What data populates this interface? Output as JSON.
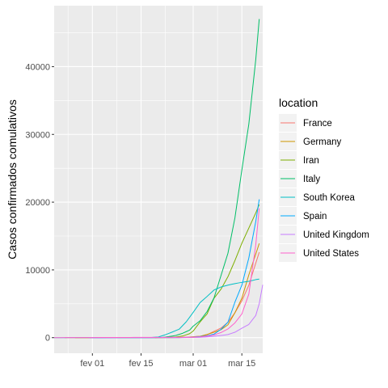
{
  "chart_data": {
    "type": "line",
    "ylabel": "Casos confirmados comulativos",
    "xlabel": "",
    "x_tick_labels": [
      {
        "date": "2020-02-01",
        "label": "fev 01"
      },
      {
        "date": "2020-02-15",
        "label": "fev 15"
      },
      {
        "date": "2020-03-01",
        "label": "mar 01"
      },
      {
        "date": "2020-03-15",
        "label": "mar 15"
      }
    ],
    "y_ticks": [
      0,
      10000,
      20000,
      30000,
      40000
    ],
    "xlim": [
      "2020-01-21",
      "2020-03-21"
    ],
    "ylim": [
      -2300,
      49000
    ],
    "legend_title": "location",
    "legend_position": "right",
    "background": "#ebebeb",
    "grid": true,
    "series": [
      {
        "name": "France",
        "color": "#F8766D",
        "points": [
          [
            "2020-01-24",
            0
          ],
          [
            "2020-02-20",
            12
          ],
          [
            "2020-02-26",
            18
          ],
          [
            "2020-03-01",
            130
          ],
          [
            "2020-03-03",
            212
          ],
          [
            "2020-03-05",
            423
          ],
          [
            "2020-03-07",
            949
          ],
          [
            "2020-03-09",
            1412
          ],
          [
            "2020-03-11",
            2281
          ],
          [
            "2020-03-13",
            3661
          ],
          [
            "2020-03-15",
            5423
          ],
          [
            "2020-03-17",
            7730
          ],
          [
            "2020-03-19",
            10995
          ],
          [
            "2020-03-20",
            12612
          ]
        ]
      },
      {
        "name": "Germany",
        "color": "#CD9600",
        "points": [
          [
            "2020-01-27",
            0
          ],
          [
            "2020-02-24",
            16
          ],
          [
            "2020-02-26",
            27
          ],
          [
            "2020-02-28",
            53
          ],
          [
            "2020-03-01",
            130
          ],
          [
            "2020-03-03",
            196
          ],
          [
            "2020-03-05",
            482
          ],
          [
            "2020-03-07",
            795
          ],
          [
            "2020-03-09",
            1176
          ],
          [
            "2020-03-11",
            1908
          ],
          [
            "2020-03-13",
            3675
          ],
          [
            "2020-03-15",
            5813
          ],
          [
            "2020-03-17",
            9257
          ],
          [
            "2020-03-19",
            12327
          ],
          [
            "2020-03-20",
            13900
          ]
        ]
      },
      {
        "name": "Iran",
        "color": "#7CAE00",
        "points": [
          [
            "2020-02-19",
            0
          ],
          [
            "2020-02-21",
            18
          ],
          [
            "2020-02-23",
            43
          ],
          [
            "2020-02-25",
            95
          ],
          [
            "2020-02-27",
            245
          ],
          [
            "2020-02-29",
            593
          ],
          [
            "2020-03-01",
            978
          ],
          [
            "2020-03-03",
            2336
          ],
          [
            "2020-03-05",
            3513
          ],
          [
            "2020-03-07",
            5823
          ],
          [
            "2020-03-09",
            7161
          ],
          [
            "2020-03-11",
            9000
          ],
          [
            "2020-03-13",
            11364
          ],
          [
            "2020-03-15",
            13938
          ],
          [
            "2020-03-17",
            16169
          ],
          [
            "2020-03-19",
            18407
          ],
          [
            "2020-03-20",
            19644
          ]
        ]
      },
      {
        "name": "Italy",
        "color": "#00BE67",
        "points": [
          [
            "2020-01-31",
            0
          ],
          [
            "2020-02-21",
            20
          ],
          [
            "2020-02-23",
            155
          ],
          [
            "2020-02-25",
            322
          ],
          [
            "2020-02-27",
            655
          ],
          [
            "2020-02-29",
            1128
          ],
          [
            "2020-03-01",
            1694
          ],
          [
            "2020-03-03",
            2502
          ],
          [
            "2020-03-05",
            3858
          ],
          [
            "2020-03-07",
            5883
          ],
          [
            "2020-03-09",
            9172
          ],
          [
            "2020-03-11",
            12462
          ],
          [
            "2020-03-13",
            17660
          ],
          [
            "2020-03-15",
            24747
          ],
          [
            "2020-03-17",
            31506
          ],
          [
            "2020-03-19",
            41035
          ],
          [
            "2020-03-20",
            47021
          ]
        ]
      },
      {
        "name": "South Korea",
        "color": "#00BFC4",
        "points": [
          [
            "2020-01-21",
            0
          ],
          [
            "2020-02-18",
            31
          ],
          [
            "2020-02-20",
            104
          ],
          [
            "2020-02-22",
            433
          ],
          [
            "2020-02-24",
            833
          ],
          [
            "2020-02-26",
            1261
          ],
          [
            "2020-02-28",
            2337
          ],
          [
            "2020-03-01",
            3736
          ],
          [
            "2020-03-03",
            5186
          ],
          [
            "2020-03-05",
            6088
          ],
          [
            "2020-03-07",
            7041
          ],
          [
            "2020-03-09",
            7478
          ],
          [
            "2020-03-11",
            7755
          ],
          [
            "2020-03-13",
            7979
          ],
          [
            "2020-03-15",
            8162
          ],
          [
            "2020-03-17",
            8320
          ],
          [
            "2020-03-19",
            8565
          ],
          [
            "2020-03-20",
            8652
          ]
        ]
      },
      {
        "name": "Spain",
        "color": "#00A9FF",
        "points": [
          [
            "2020-02-01",
            0
          ],
          [
            "2020-02-25",
            6
          ],
          [
            "2020-02-27",
            23
          ],
          [
            "2020-02-29",
            45
          ],
          [
            "2020-03-01",
            84
          ],
          [
            "2020-03-03",
            165
          ],
          [
            "2020-03-05",
            282
          ],
          [
            "2020-03-07",
            525
          ],
          [
            "2020-03-09",
            1231
          ],
          [
            "2020-03-11",
            2277
          ],
          [
            "2020-03-13",
            5232
          ],
          [
            "2020-03-15",
            7753
          ],
          [
            "2020-03-17",
            11748
          ],
          [
            "2020-03-19",
            17147
          ],
          [
            "2020-03-20",
            20410
          ]
        ]
      },
      {
        "name": "United Kingdom",
        "color": "#C77CFF",
        "points": [
          [
            "2020-01-31",
            0
          ],
          [
            "2020-02-25",
            13
          ],
          [
            "2020-02-27",
            15
          ],
          [
            "2020-02-29",
            23
          ],
          [
            "2020-03-01",
            36
          ],
          [
            "2020-03-03",
            51
          ],
          [
            "2020-03-05",
            116
          ],
          [
            "2020-03-07",
            209
          ],
          [
            "2020-03-09",
            321
          ],
          [
            "2020-03-11",
            459
          ],
          [
            "2020-03-13",
            798
          ],
          [
            "2020-03-15",
            1391
          ],
          [
            "2020-03-17",
            1950
          ],
          [
            "2020-03-19",
            3269
          ],
          [
            "2020-03-20",
            5018
          ],
          [
            "2020-03-21",
            7800
          ]
        ]
      },
      {
        "name": "United States",
        "color": "#FF61CC",
        "points": [
          [
            "2020-01-21",
            0
          ],
          [
            "2020-02-25",
            53
          ],
          [
            "2020-02-27",
            60
          ],
          [
            "2020-02-29",
            68
          ],
          [
            "2020-03-01",
            75
          ],
          [
            "2020-03-03",
            122
          ],
          [
            "2020-03-05",
            221
          ],
          [
            "2020-03-07",
            402
          ],
          [
            "2020-03-09",
            755
          ],
          [
            "2020-03-11",
            1281
          ],
          [
            "2020-03-13",
            2179
          ],
          [
            "2020-03-15",
            3499
          ],
          [
            "2020-03-17",
            6421
          ],
          [
            "2020-03-19",
            13677
          ],
          [
            "2020-03-20",
            19100
          ]
        ]
      }
    ]
  }
}
